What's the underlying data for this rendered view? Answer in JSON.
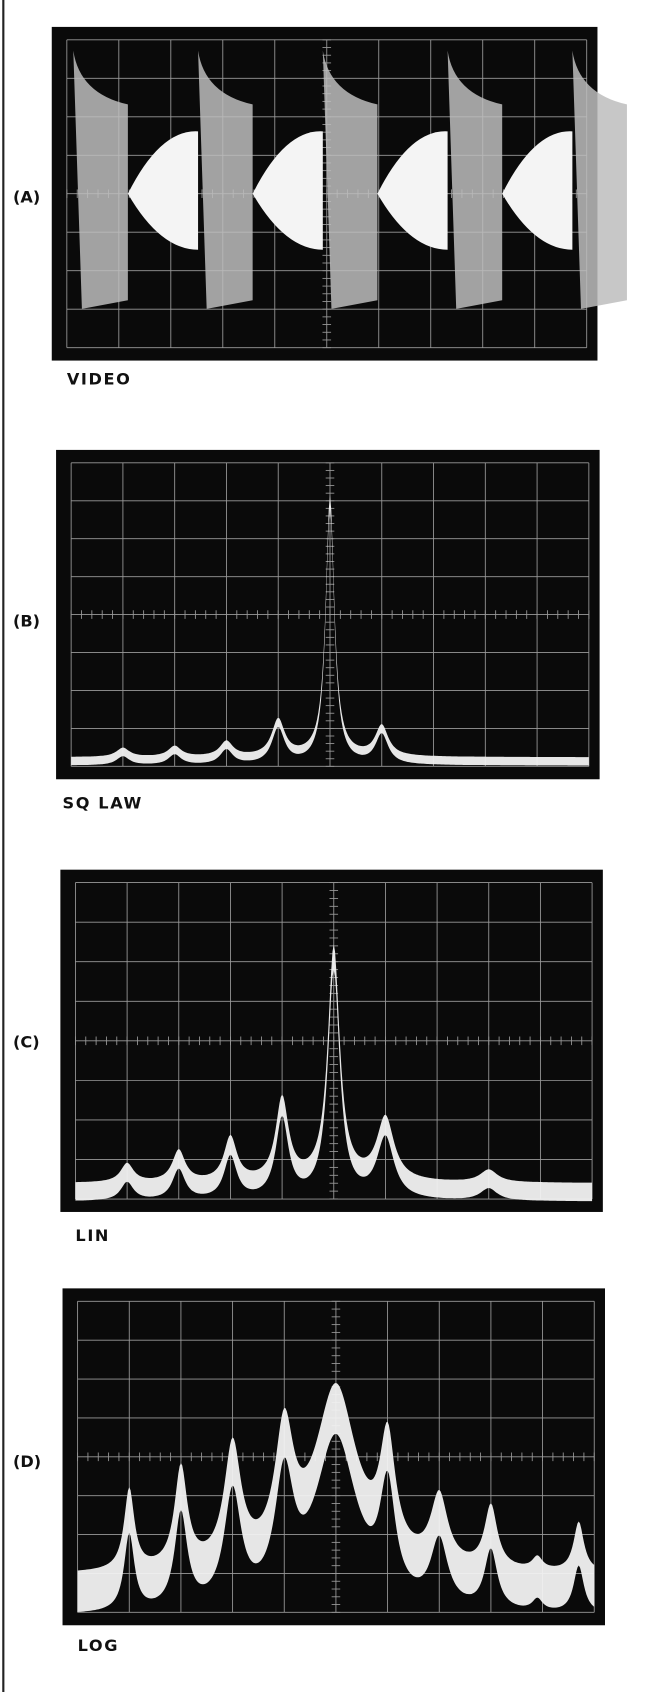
{
  "panels": [
    {
      "label": "(A)",
      "caption": "VIDEO"
    },
    {
      "label": "(B)",
      "caption": "SQ LAW"
    },
    {
      "label": "(C)",
      "caption": "LIN"
    },
    {
      "label": "(D)",
      "caption": "LOG"
    }
  ]
}
